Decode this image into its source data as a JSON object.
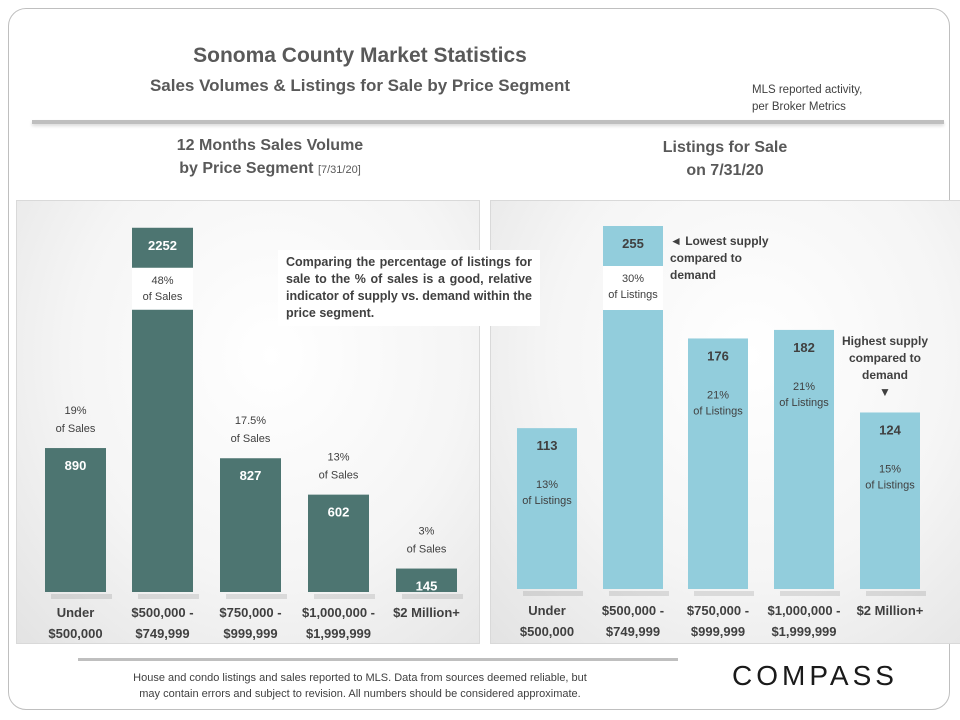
{
  "header": {
    "title": "Sonoma County Market Statistics",
    "subtitle": "Sales Volumes & Listings for Sale by Price Segment",
    "source_note_line1": "MLS reported activity,",
    "source_note_line2": "per Broker Metrics"
  },
  "colors": {
    "sales_bar": "#4d7571",
    "listings_bar": "#92cddc",
    "text": "#404040"
  },
  "left_panel": {
    "title_line1": "12 Months Sales Volume",
    "title_line2": "by Price Segment",
    "title_date": "[7/31/20]",
    "callout": "Comparing the percentage of listings for sale to the % of sales is a good, relative indicator of supply vs. demand within the price segment."
  },
  "right_panel": {
    "title_line1": "Listings for Sale",
    "title_line2": "on 7/31/20",
    "note_lowest": "◄ Lowest supply\ncompared to\ndemand",
    "note_highest": "Highest supply\ncompared to\ndemand\n▼"
  },
  "chart_data": [
    {
      "type": "bar",
      "categories": [
        "Under\n$500,000",
        "$500,000 -\n$749,999",
        "$750,000 -\n$999,999",
        "$1,000,000 -\n$1,999,999",
        "$2 Million+"
      ],
      "values": [
        890,
        2252,
        827,
        602,
        145
      ],
      "value_labels": [
        "890",
        "2252",
        "827",
        "602",
        "145"
      ],
      "percent_labels": [
        "19%\nof Sales",
        "48%\nof Sales",
        "17.5%\nof Sales",
        "13%\nof Sales",
        "3%\nof Sales"
      ],
      "ylim": [
        0,
        2300
      ],
      "grid": false,
      "legend": "none"
    },
    {
      "type": "bar",
      "categories": [
        "Under\n$500,000",
        "$500,000 -\n$749,999",
        "$750,000 -\n$999,999",
        "$1,000,000 -\n$1,999,999",
        "$2 Million+"
      ],
      "values": [
        113,
        255,
        176,
        182,
        124
      ],
      "value_labels": [
        "113",
        "255",
        "176",
        "182",
        "124"
      ],
      "percent_labels": [
        "13%\nof Listings",
        "30%\nof Listings",
        "21%\nof Listings",
        "21%\nof Listings",
        "15%\nof Listings"
      ],
      "ylim": [
        0,
        255
      ],
      "grid": false,
      "legend": "none"
    }
  ],
  "footer": {
    "line1": "House and condo listings and sales reported to MLS. Data from sources deemed reliable, but",
    "line2": "may contain errors and subject to revision. All numbers should be considered approximate."
  },
  "brand": "COMPASS"
}
